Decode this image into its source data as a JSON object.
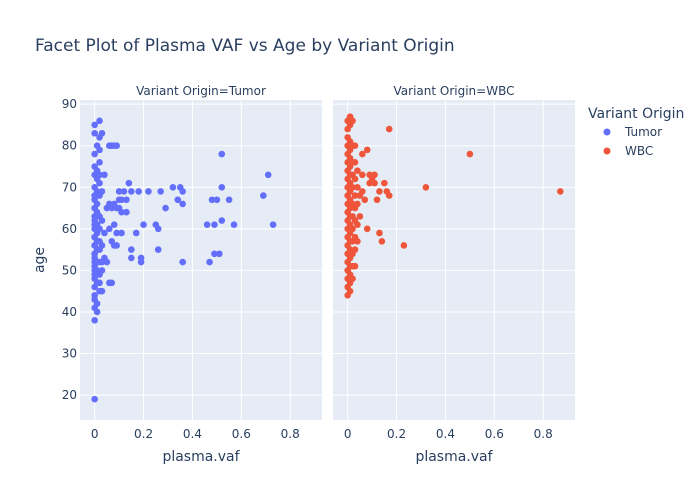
{
  "chart_data": {
    "type": "scatter",
    "title": "Facet Plot of Plasma VAF vs Age by Variant Origin",
    "ylabel": "age",
    "xlabel": "plasma.vaf",
    "xlim": [
      -0.06,
      0.93
    ],
    "ylim": [
      14,
      91
    ],
    "x_ticks": [
      0,
      0.2,
      0.4,
      0.6,
      0.8
    ],
    "x_tick_labels": [
      "0",
      "0.2",
      "0.4",
      "0.6",
      "0.8"
    ],
    "y_ticks": [
      20,
      30,
      40,
      50,
      60,
      70,
      80,
      90
    ],
    "grid": true,
    "legend": {
      "title": "Variant Origin",
      "placement": "top-right"
    },
    "facets": [
      {
        "title": "Variant Origin=Tumor",
        "series": "Tumor"
      },
      {
        "title": "Variant Origin=WBC",
        "series": "WBC"
      }
    ],
    "series": [
      {
        "name": "Tumor",
        "color": "#636efa",
        "points": [
          [
            0.0,
            85
          ],
          [
            0.0,
            83
          ],
          [
            0.01,
            80
          ],
          [
            0.0,
            78
          ],
          [
            0.0,
            75
          ],
          [
            0.01,
            74
          ],
          [
            0.0,
            73
          ],
          [
            0.01,
            72
          ],
          [
            0.0,
            70
          ],
          [
            0.01,
            69
          ],
          [
            0.0,
            68
          ],
          [
            0.0,
            67
          ],
          [
            0.01,
            66
          ],
          [
            0.0,
            65
          ],
          [
            0.01,
            64
          ],
          [
            0.0,
            63
          ],
          [
            0.0,
            62
          ],
          [
            0.01,
            61
          ],
          [
            0.0,
            60
          ],
          [
            0.01,
            59
          ],
          [
            0.0,
            58
          ],
          [
            0.01,
            57
          ],
          [
            0.0,
            56
          ],
          [
            0.01,
            55
          ],
          [
            0.0,
            54
          ],
          [
            0.0,
            53
          ],
          [
            0.01,
            52
          ],
          [
            0.0,
            51
          ],
          [
            0.01,
            50
          ],
          [
            0.0,
            49
          ],
          [
            0.0,
            48
          ],
          [
            0.01,
            47
          ],
          [
            0.0,
            46
          ],
          [
            0.0,
            44
          ],
          [
            0.0,
            43
          ],
          [
            0.01,
            42
          ],
          [
            0.0,
            41
          ],
          [
            0.01,
            40
          ],
          [
            0.0,
            38
          ],
          [
            0.0,
            19
          ],
          [
            0.0,
            65
          ],
          [
            0.0,
            61
          ],
          [
            0.0,
            58
          ],
          [
            0.0,
            56
          ],
          [
            0.0,
            54
          ],
          [
            0.0,
            52
          ],
          [
            0.0,
            50
          ],
          [
            0.02,
            86
          ],
          [
            0.02,
            82
          ],
          [
            0.02,
            79
          ],
          [
            0.02,
            76
          ],
          [
            0.02,
            73
          ],
          [
            0.02,
            71
          ],
          [
            0.02,
            68
          ],
          [
            0.02,
            63
          ],
          [
            0.02,
            60
          ],
          [
            0.02,
            57
          ],
          [
            0.02,
            55
          ],
          [
            0.02,
            52
          ],
          [
            0.02,
            49
          ],
          [
            0.02,
            47
          ],
          [
            0.02,
            45
          ],
          [
            0.03,
            83
          ],
          [
            0.03,
            69
          ],
          [
            0.03,
            62
          ],
          [
            0.03,
            56
          ],
          [
            0.03,
            52
          ],
          [
            0.03,
            50
          ],
          [
            0.03,
            45
          ],
          [
            0.04,
            73
          ],
          [
            0.04,
            59
          ],
          [
            0.04,
            53
          ],
          [
            0.05,
            65
          ],
          [
            0.05,
            52
          ],
          [
            0.06,
            80
          ],
          [
            0.06,
            66
          ],
          [
            0.06,
            60
          ],
          [
            0.06,
            47
          ],
          [
            0.07,
            80
          ],
          [
            0.07,
            65
          ],
          [
            0.07,
            57
          ],
          [
            0.07,
            47
          ],
          [
            0.08,
            80
          ],
          [
            0.08,
            66
          ],
          [
            0.08,
            61
          ],
          [
            0.08,
            56
          ],
          [
            0.09,
            80
          ],
          [
            0.09,
            65
          ],
          [
            0.09,
            59
          ],
          [
            0.09,
            56
          ],
          [
            0.1,
            69
          ],
          [
            0.1,
            67
          ],
          [
            0.1,
            65
          ],
          [
            0.11,
            67
          ],
          [
            0.11,
            64
          ],
          [
            0.11,
            59
          ],
          [
            0.12,
            69
          ],
          [
            0.13,
            67
          ],
          [
            0.13,
            64
          ],
          [
            0.14,
            71
          ],
          [
            0.15,
            55
          ],
          [
            0.15,
            53
          ],
          [
            0.15,
            69
          ],
          [
            0.17,
            59
          ],
          [
            0.18,
            69
          ],
          [
            0.19,
            53
          ],
          [
            0.19,
            52
          ],
          [
            0.2,
            61
          ],
          [
            0.22,
            69
          ],
          [
            0.25,
            61
          ],
          [
            0.26,
            60
          ],
          [
            0.26,
            55
          ],
          [
            0.27,
            69
          ],
          [
            0.29,
            65
          ],
          [
            0.32,
            70
          ],
          [
            0.34,
            67
          ],
          [
            0.35,
            70
          ],
          [
            0.36,
            66
          ],
          [
            0.36,
            52
          ],
          [
            0.36,
            69
          ],
          [
            0.46,
            61
          ],
          [
            0.47,
            52
          ],
          [
            0.48,
            67
          ],
          [
            0.49,
            61
          ],
          [
            0.49,
            54
          ],
          [
            0.5,
            67
          ],
          [
            0.51,
            54
          ],
          [
            0.52,
            62
          ],
          [
            0.52,
            70
          ],
          [
            0.52,
            78
          ],
          [
            0.55,
            67
          ],
          [
            0.57,
            61
          ],
          [
            0.69,
            68
          ],
          [
            0.71,
            73
          ],
          [
            0.73,
            61
          ]
        ]
      },
      {
        "name": "WBC",
        "color": "#ef553b",
        "points": [
          [
            0.0,
            86
          ],
          [
            0.0,
            84
          ],
          [
            0.0,
            82
          ],
          [
            0.0,
            80
          ],
          [
            0.0,
            78
          ],
          [
            0.0,
            76
          ],
          [
            0.0,
            74
          ],
          [
            0.0,
            72
          ],
          [
            0.0,
            70
          ],
          [
            0.0,
            68
          ],
          [
            0.0,
            66
          ],
          [
            0.0,
            64
          ],
          [
            0.0,
            62
          ],
          [
            0.0,
            60
          ],
          [
            0.0,
            58
          ],
          [
            0.0,
            56
          ],
          [
            0.0,
            54
          ],
          [
            0.0,
            52
          ],
          [
            0.0,
            50
          ],
          [
            0.0,
            48
          ],
          [
            0.0,
            46
          ],
          [
            0.0,
            44
          ],
          [
            0.01,
            87
          ],
          [
            0.01,
            85
          ],
          [
            0.01,
            81
          ],
          [
            0.01,
            79
          ],
          [
            0.01,
            77
          ],
          [
            0.01,
            75
          ],
          [
            0.01,
            73
          ],
          [
            0.01,
            71
          ],
          [
            0.01,
            69
          ],
          [
            0.01,
            67
          ],
          [
            0.01,
            65
          ],
          [
            0.01,
            63
          ],
          [
            0.01,
            61
          ],
          [
            0.01,
            59
          ],
          [
            0.01,
            57
          ],
          [
            0.01,
            55
          ],
          [
            0.01,
            53
          ],
          [
            0.01,
            51
          ],
          [
            0.01,
            49
          ],
          [
            0.01,
            47
          ],
          [
            0.01,
            45
          ],
          [
            0.02,
            86
          ],
          [
            0.02,
            80
          ],
          [
            0.02,
            76
          ],
          [
            0.02,
            73
          ],
          [
            0.02,
            70
          ],
          [
            0.02,
            66
          ],
          [
            0.02,
            63
          ],
          [
            0.02,
            60
          ],
          [
            0.02,
            57
          ],
          [
            0.02,
            54
          ],
          [
            0.02,
            51
          ],
          [
            0.02,
            48
          ],
          [
            0.03,
            80
          ],
          [
            0.03,
            76
          ],
          [
            0.03,
            72
          ],
          [
            0.03,
            68
          ],
          [
            0.03,
            65
          ],
          [
            0.03,
            62
          ],
          [
            0.03,
            58
          ],
          [
            0.03,
            55
          ],
          [
            0.03,
            51
          ],
          [
            0.04,
            74
          ],
          [
            0.04,
            70
          ],
          [
            0.04,
            66
          ],
          [
            0.04,
            61
          ],
          [
            0.04,
            57
          ],
          [
            0.05,
            68
          ],
          [
            0.05,
            63
          ],
          [
            0.06,
            78
          ],
          [
            0.06,
            73
          ],
          [
            0.06,
            69
          ],
          [
            0.07,
            67
          ],
          [
            0.08,
            79
          ],
          [
            0.08,
            60
          ],
          [
            0.09,
            73
          ],
          [
            0.09,
            71
          ],
          [
            0.1,
            72
          ],
          [
            0.11,
            71
          ],
          [
            0.11,
            73
          ],
          [
            0.12,
            67
          ],
          [
            0.13,
            69
          ],
          [
            0.13,
            59
          ],
          [
            0.14,
            57
          ],
          [
            0.15,
            71
          ],
          [
            0.16,
            69
          ],
          [
            0.17,
            84
          ],
          [
            0.17,
            68
          ],
          [
            0.23,
            56
          ],
          [
            0.32,
            70
          ],
          [
            0.5,
            78
          ],
          [
            0.87,
            69
          ]
        ]
      }
    ]
  }
}
